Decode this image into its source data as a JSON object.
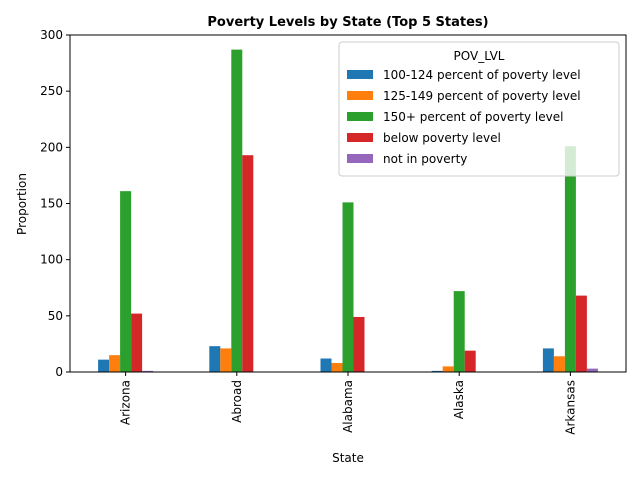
{
  "chart_data": {
    "type": "bar",
    "title": "Poverty Levels by State (Top 5 States)",
    "xlabel": "State",
    "ylabel": "Proportion",
    "categories": [
      "Arizona",
      "Abroad",
      "Alabama",
      "Alaska",
      "Arkansas"
    ],
    "ylim": [
      0,
      300
    ],
    "yticks": [
      0,
      50,
      100,
      150,
      200,
      250,
      300
    ],
    "grid": false,
    "legend": {
      "title": "POV_LVL",
      "placement": "top-right"
    },
    "series": [
      {
        "name": "100-124 percent of poverty level",
        "color": "#1f77b4",
        "values": [
          11,
          23,
          12,
          1,
          21
        ]
      },
      {
        "name": "125-149 percent of poverty level",
        "color": "#ff7f0e",
        "values": [
          15,
          21,
          8,
          5,
          14
        ]
      },
      {
        "name": "150+ percent of poverty level",
        "color": "#2ca02c",
        "values": [
          161,
          287,
          151,
          72,
          201
        ]
      },
      {
        "name": "below poverty level",
        "color": "#d62728",
        "values": [
          52,
          193,
          49,
          19,
          68
        ]
      },
      {
        "name": "not in poverty",
        "color": "#9467bd",
        "values": [
          1,
          0,
          0,
          0,
          3
        ]
      }
    ]
  }
}
